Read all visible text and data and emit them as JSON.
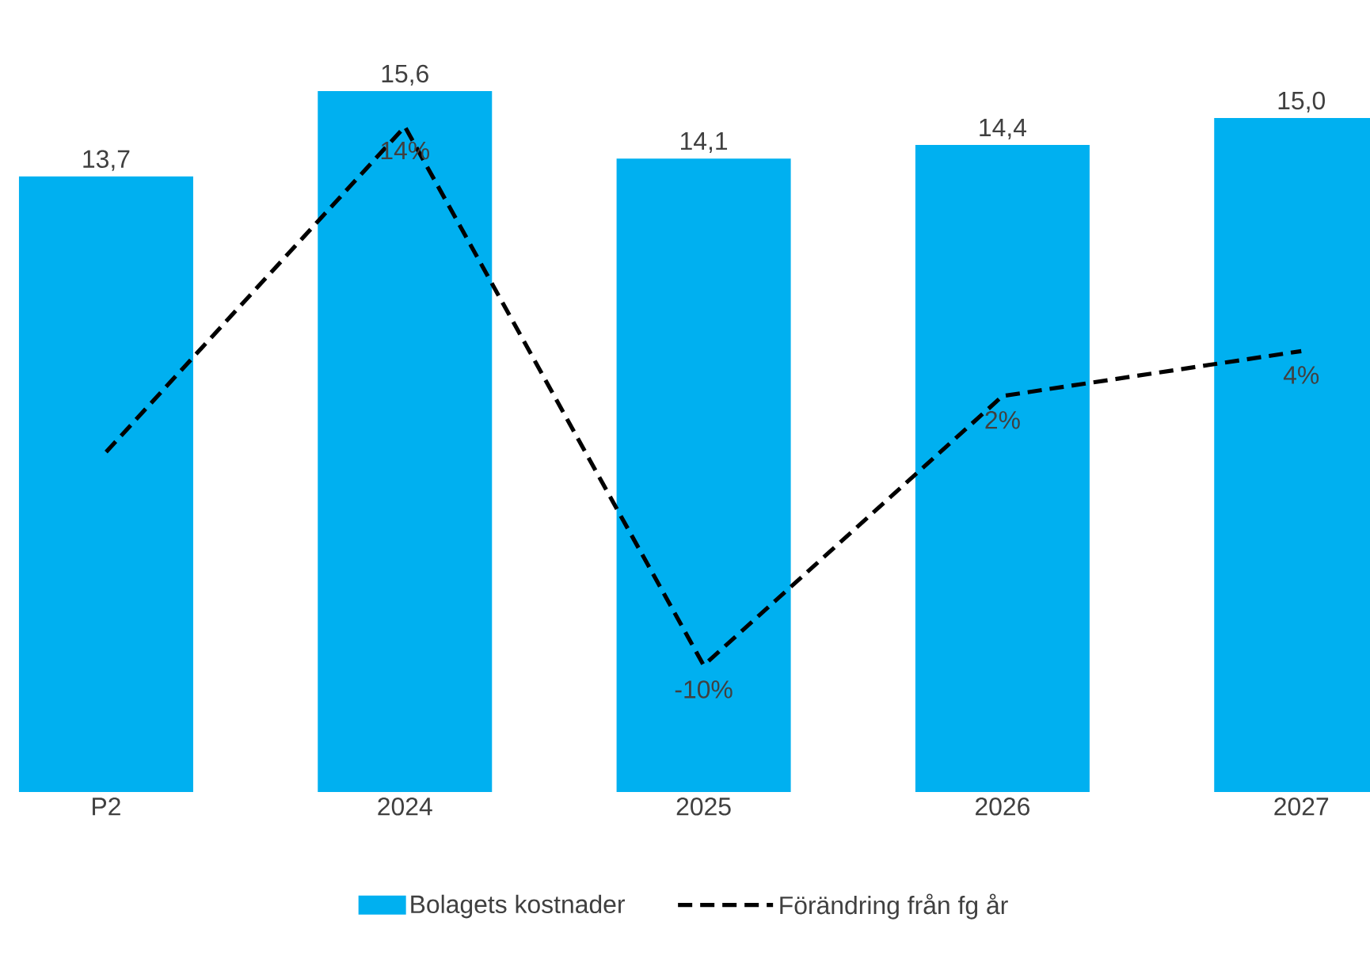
{
  "chart_data": {
    "type": "bar",
    "categories": [
      "P2",
      "2024",
      "2025",
      "2026",
      "2027"
    ],
    "tick_labels": "x",
    "legend": "bottom",
    "series": [
      {
        "name": "Bolagets kostnader",
        "color": "#00b0f0",
        "values": [
          13.7,
          15.6,
          14.1,
          14.4,
          15.0
        ],
        "value_labels": [
          "13,7",
          "15,6",
          "14,1",
          "14,4",
          "15,0"
        ]
      },
      {
        "name": "Förändring från fg år",
        "type": "line",
        "axis": "y2",
        "color": "#000000",
        "line_style": "dashed",
        "marker": "none",
        "values": [
          -0.5,
          14,
          -10,
          2,
          4
        ],
        "value_labels": [
          null,
          "14%",
          "-10%",
          "2%",
          "4%"
        ]
      }
    ]
  }
}
